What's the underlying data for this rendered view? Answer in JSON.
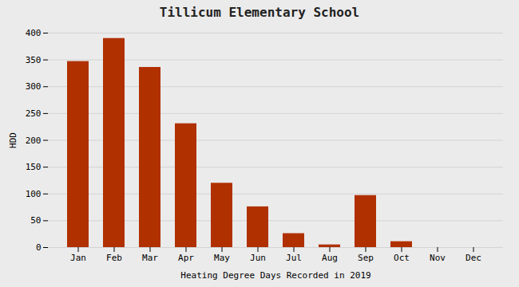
{
  "chart_data": {
    "type": "bar",
    "title": "Tillicum Elementary School",
    "xlabel": "Heating Degree Days Recorded in 2019",
    "ylabel": "HDD",
    "categories": [
      "Jan",
      "Feb",
      "Mar",
      "Apr",
      "May",
      "Jun",
      "Jul",
      "Aug",
      "Sep",
      "Oct",
      "Nov",
      "Dec"
    ],
    "values": [
      347,
      390,
      336,
      231,
      120,
      76,
      26,
      5,
      97,
      11,
      0,
      0
    ],
    "color": "#b03000",
    "ylim": [
      0,
      400
    ],
    "yticks": [
      0,
      50,
      100,
      150,
      200,
      250,
      300,
      350,
      400
    ],
    "grid": true
  }
}
